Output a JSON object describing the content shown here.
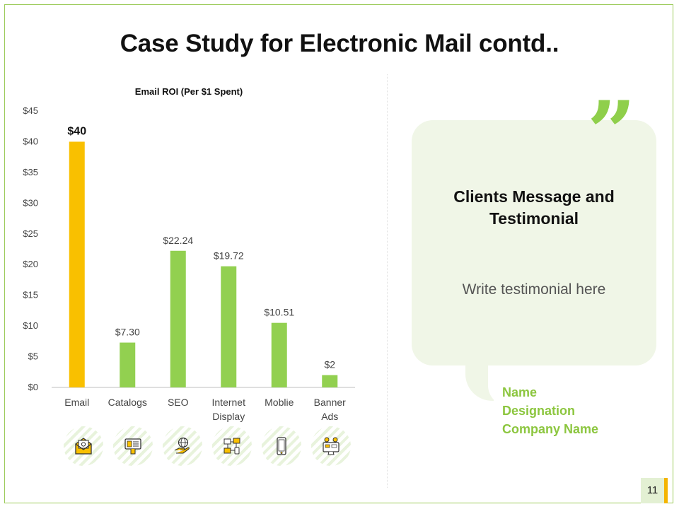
{
  "slide": {
    "title": "Case Study for Electronic Mail contd..",
    "page_number": "11"
  },
  "chart_data": {
    "type": "bar",
    "title": "Email ROI (Per $1 Spent)",
    "xlabel": "",
    "ylabel": "",
    "categories": [
      [
        "Email"
      ],
      [
        "Catalogs"
      ],
      [
        "SEO"
      ],
      [
        "Internet",
        "Display"
      ],
      [
        "Moblie"
      ],
      [
        "Banner",
        "Ads"
      ]
    ],
    "values": [
      40,
      7.3,
      22.24,
      19.72,
      10.51,
      2
    ],
    "value_labels": [
      "$40",
      "$7.30",
      "$22.24",
      "$19.72",
      "$10.51",
      "$2"
    ],
    "highlight_index": 0,
    "ylim": [
      0,
      45
    ],
    "yticks": [
      0,
      5,
      10,
      15,
      20,
      25,
      30,
      35,
      40,
      45
    ],
    "ytick_labels": [
      "$0",
      "$5",
      "$10",
      "$15",
      "$20",
      "$25",
      "$30",
      "$35",
      "$40",
      "$45"
    ],
    "grid": false,
    "colors": {
      "highlight": "#f9c000",
      "default": "#92d050"
    }
  },
  "icons": [
    "email-icon",
    "catalog-icon",
    "seo-globe-hand-icon",
    "internet-display-network-icon",
    "mobile-phone-icon",
    "banner-ads-monitor-icon"
  ],
  "testimonial": {
    "heading": "Clients Message and Testimonial",
    "body": "Write testimonial here",
    "quote_mark": "”",
    "name": "Name",
    "designation": "Designation",
    "company": "Company Name"
  },
  "colors": {
    "accent_green": "#8cc63f",
    "accent_yellow": "#f4b400",
    "bubble_bg": "#f0f6e7"
  }
}
